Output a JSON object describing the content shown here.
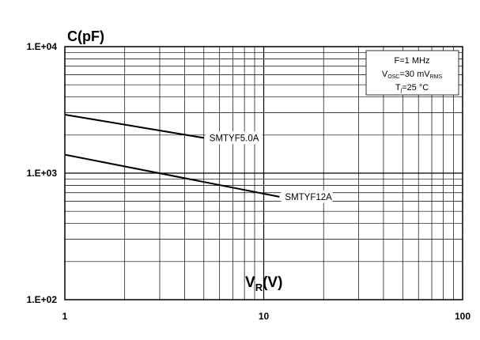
{
  "chart_data": {
    "type": "line",
    "title": "",
    "ylabel": "C(pF)",
    "xlabel": "VR(V)",
    "xlabel_main": "V",
    "xlabel_sub": "R",
    "xlabel_unit": "(V)",
    "x_scale": "log",
    "y_scale": "log",
    "xlim": [
      1,
      100
    ],
    "ylim": [
      100,
      10000
    ],
    "x_tick_labels": [
      "1",
      "10",
      "100"
    ],
    "y_tick_labels": [
      "1.E+02",
      "1.E+03",
      "1.E+04"
    ],
    "grid": true,
    "series": [
      {
        "name": "SMTYF5.0A",
        "x": [
          1,
          5
        ],
        "y": [
          2900,
          1900
        ]
      },
      {
        "name": "SMTYF12A",
        "x": [
          1,
          12
        ],
        "y": [
          1400,
          650
        ]
      }
    ],
    "conditions": {
      "freq": "F=1 MHz",
      "vosc_prefix": "V",
      "vosc_sub": "OSC",
      "vosc_value": "=30 mV",
      "vosc_unit_sub": "RMS",
      "tj_prefix": "T",
      "tj_sub": "j",
      "tj_value": "=25 °C"
    }
  }
}
